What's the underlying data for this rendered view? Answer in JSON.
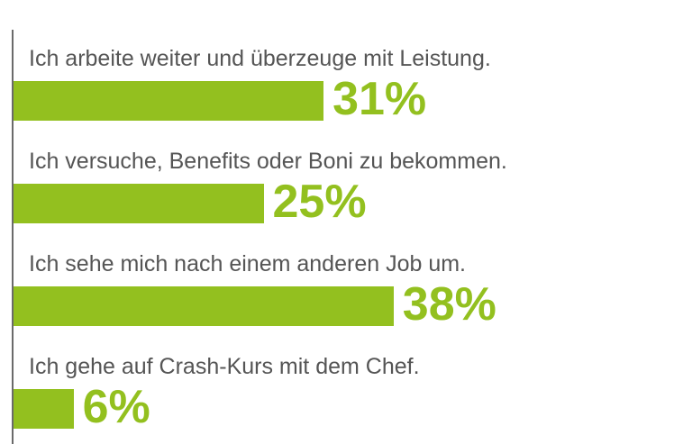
{
  "chart_data": {
    "type": "bar",
    "orientation": "horizontal",
    "title": "",
    "categories": [
      "Ich arbeite weiter und überzeuge mit Leistung.",
      "Ich versuche, Benefits oder Boni zu bekommen.",
      "Ich sehe mich nach einem anderen Job um.",
      "Ich gehe auf Crash-Kurs mit dem Chef."
    ],
    "values": [
      31,
      25,
      38,
      6
    ],
    "value_labels": [
      "31%",
      "25%",
      "38%",
      "6%"
    ],
    "unit": "%",
    "xlim": [
      0,
      65
    ],
    "grid": false,
    "colors": {
      "bar": "#93c01f",
      "label": "#555555",
      "axis": "#6a6a6a"
    }
  }
}
